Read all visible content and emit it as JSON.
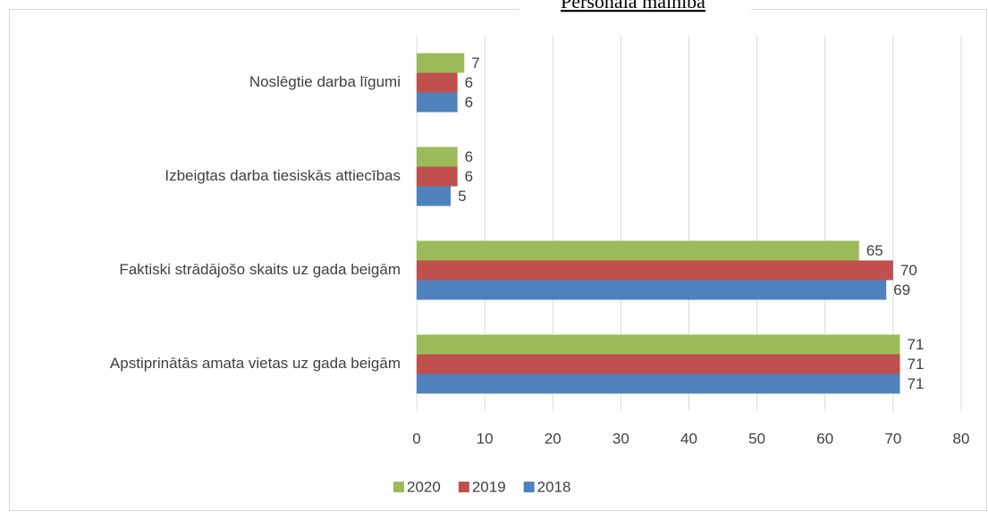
{
  "chart_data": {
    "type": "barh",
    "title": "Personāla mainība",
    "categories": [
      "Noslēgtie darba līgumi",
      "Izbeigtas darba tiesiskās attiecības",
      "Faktiski strādājošo skaits uz gada beigām",
      "Apstiprinātās amata vietas uz gada beigām"
    ],
    "series": [
      {
        "name": "2020",
        "color": "#9bbb59",
        "values": [
          7,
          6,
          65,
          71
        ]
      },
      {
        "name": "2019",
        "color": "#c0504d",
        "values": [
          6,
          6,
          70,
          71
        ]
      },
      {
        "name": "2018",
        "color": "#4f81bd",
        "values": [
          6,
          5,
          69,
          71
        ]
      }
    ],
    "xlim": [
      0,
      80
    ],
    "xticks": [
      0,
      10,
      20,
      30,
      40,
      50,
      60,
      70,
      80
    ],
    "grid": true,
    "legend": "bottom"
  }
}
